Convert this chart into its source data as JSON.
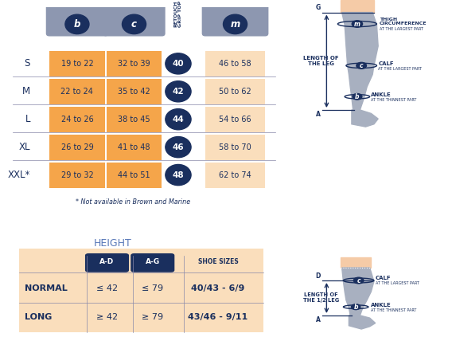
{
  "bg_color": "#ffffff",
  "orange_color": "#F5A54A",
  "orange_light": "#FADEBC",
  "dark_blue": "#1a2f5e",
  "gray_header": "#8d97b0",
  "skin_color": "#F5CBA7",
  "leg_gray": "#a8b0c0",
  "sizes": [
    "S",
    "M",
    "L",
    "XL",
    "XXL*"
  ],
  "ankle_vals": [
    "19 to 22",
    "22 to 24",
    "24 to 26",
    "26 to 29",
    "29 to 32"
  ],
  "calf_vals": [
    "32 to 39",
    "35 to 42",
    "38 to 45",
    "41 to 48",
    "44 to 51"
  ],
  "grip_vals": [
    "40",
    "42",
    "44",
    "46",
    "48"
  ],
  "thigh_vals": [
    "46 to 58",
    "50 to 62",
    "54 to 66",
    "58 to 70",
    "62 to 74"
  ],
  "footnote": "* Not available in Brown and Marine",
  "height_title": "HEIGHT",
  "height_col1": "A-D",
  "height_col2": "A-G",
  "height_col3": "SHOE SIZES",
  "height_rows": [
    [
      "NORMAL",
      "≤ 42",
      "≤ 79",
      "40/43 - 6/9"
    ],
    [
      "LONG",
      "≥ 42",
      "≥ 79",
      "43/46 - 9/11"
    ]
  ],
  "d1": {
    "thigh_circ": "THIGH\nCIRCUMFERENCE",
    "thigh_sub": "AT THE LARGEST PART",
    "calf": "CALF",
    "calf_sub": "AT THE LARGEST PART",
    "ankle": "ANKLE",
    "ankle_sub": "AT THE THINNEST PART",
    "length": "LENGTH OF\nTHE LEG"
  },
  "d2": {
    "calf": "CALF",
    "calf_sub": "AT THE LARGEST PART",
    "ankle": "ANKLE",
    "ankle_sub": "AT THE THINNEST PART",
    "length": "LENGTH OF\nTHE 1/2 LEG"
  }
}
